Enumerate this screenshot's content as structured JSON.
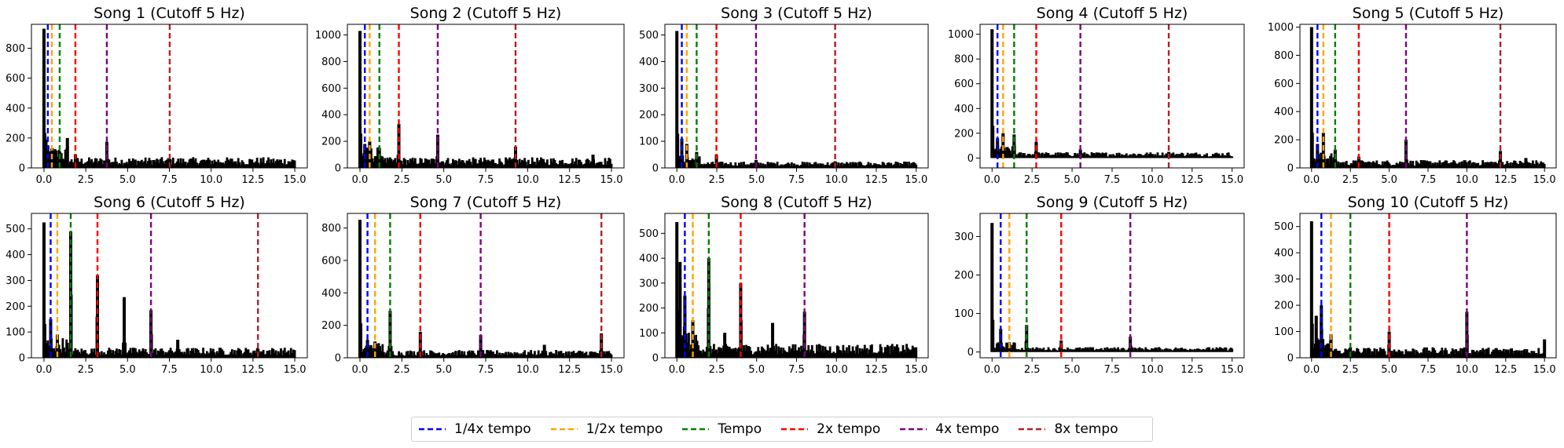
{
  "figure": {
    "cutoff_hz": 5
  },
  "legend": {
    "items": [
      {
        "label": "1/4x tempo",
        "color": "#0000ff"
      },
      {
        "label": "1/2x tempo",
        "color": "#ffa500"
      },
      {
        "label": "Tempo",
        "color": "#008000"
      },
      {
        "label": "2x tempo",
        "color": "#ff0000"
      },
      {
        "label": "4x tempo",
        "color": "#800080"
      },
      {
        "label": "8x tempo",
        "color": "#b22222"
      }
    ]
  },
  "chart_data": [
    {
      "type": "bar",
      "title": "Song 1 (Cutoff 5 Hz)",
      "xlim": [
        -0.75,
        15.75
      ],
      "ylim": [
        0,
        960
      ],
      "xticks": [
        0.0,
        2.5,
        5.0,
        7.5,
        10.0,
        12.5,
        15.0
      ],
      "yticks": [
        0,
        200,
        400,
        600,
        800
      ],
      "tempo_markers": [
        0.23,
        0.47,
        0.94,
        1.88,
        3.76,
        7.52
      ],
      "peaks": [
        [
          0.0,
          930
        ],
        [
          0.12,
          190
        ],
        [
          0.23,
          150
        ],
        [
          0.47,
          130
        ],
        [
          0.94,
          110
        ],
        [
          1.4,
          200
        ],
        [
          1.88,
          90
        ],
        [
          3.76,
          175
        ],
        [
          7.52,
          60
        ]
      ],
      "baseline": 45
    },
    {
      "type": "bar",
      "title": "Song 2 (Cutoff 5 Hz)",
      "xlim": [
        -0.75,
        15.75
      ],
      "ylim": [
        0,
        1080
      ],
      "xticks": [
        0.0,
        2.5,
        5.0,
        7.5,
        10.0,
        12.5,
        15.0
      ],
      "yticks": [
        0,
        200,
        400,
        600,
        800,
        1000
      ],
      "tempo_markers": [
        0.29,
        0.58,
        1.16,
        2.32,
        4.64,
        9.28
      ],
      "peaks": [
        [
          0.0,
          1030
        ],
        [
          0.29,
          180
        ],
        [
          0.58,
          200
        ],
        [
          1.16,
          150
        ],
        [
          2.32,
          330
        ],
        [
          4.64,
          250
        ],
        [
          9.28,
          160
        ],
        [
          13.9,
          100
        ]
      ],
      "baseline": 50
    },
    {
      "type": "bar",
      "title": "Song 3 (Cutoff 5 Hz)",
      "xlim": [
        -0.75,
        15.75
      ],
      "ylim": [
        0,
        540
      ],
      "xticks": [
        0.0,
        2.5,
        5.0,
        7.5,
        10.0,
        12.5,
        15.0
      ],
      "yticks": [
        0,
        100,
        200,
        300,
        400,
        500
      ],
      "tempo_markers": [
        0.31,
        0.62,
        1.24,
        2.48,
        4.96,
        9.92
      ],
      "peaks": [
        [
          0.0,
          515
        ],
        [
          0.31,
          110
        ],
        [
          0.62,
          90
        ],
        [
          1.24,
          60
        ],
        [
          2.48,
          50
        ],
        [
          4.96,
          30
        ],
        [
          9.92,
          25
        ]
      ],
      "baseline": 15
    },
    {
      "type": "bar",
      "title": "Song 4 (Cutoff 5 Hz)",
      "xlim": [
        -0.75,
        15.75
      ],
      "ylim": [
        -80,
        1080
      ],
      "xticks": [
        0.0,
        2.5,
        5.0,
        7.5,
        10.0,
        12.5,
        15.0
      ],
      "yticks": [
        0,
        200,
        400,
        600,
        800,
        1000
      ],
      "tempo_markers": [
        0.34,
        0.69,
        1.38,
        2.76,
        5.52,
        11.04
      ],
      "peaks": [
        [
          0.0,
          1040
        ],
        [
          0.34,
          160
        ],
        [
          0.69,
          200
        ],
        [
          1.38,
          190
        ],
        [
          2.76,
          130
        ],
        [
          5.52,
          70
        ],
        [
          11.04,
          50
        ]
      ],
      "baseline": 30
    },
    {
      "type": "bar",
      "title": "Song 5 (Cutoff 5 Hz)",
      "xlim": [
        -0.75,
        15.75
      ],
      "ylim": [
        0,
        1020
      ],
      "xticks": [
        0.0,
        2.5,
        5.0,
        7.5,
        10.0,
        12.5,
        15.0
      ],
      "yticks": [
        0,
        200,
        400,
        600,
        800,
        1000
      ],
      "tempo_markers": [
        0.38,
        0.76,
        1.52,
        3.04,
        6.08,
        12.16
      ],
      "peaks": [
        [
          0.0,
          1000
        ],
        [
          0.38,
          170
        ],
        [
          0.76,
          250
        ],
        [
          1.52,
          130
        ],
        [
          3.04,
          80
        ],
        [
          6.08,
          200
        ],
        [
          12.16,
          120
        ],
        [
          13.8,
          70
        ]
      ],
      "baseline": 35
    },
    {
      "type": "bar",
      "title": "Song 6 (Cutoff 5 Hz)",
      "xlim": [
        -0.75,
        15.75
      ],
      "ylim": [
        0,
        560
      ],
      "xticks": [
        0.0,
        2.5,
        5.0,
        7.5,
        10.0,
        12.5,
        15.0
      ],
      "yticks": [
        0,
        100,
        200,
        300,
        400,
        500
      ],
      "tempo_markers": [
        0.4,
        0.8,
        1.6,
        3.2,
        6.4,
        12.8
      ],
      "peaks": [
        [
          0.0,
          525
        ],
        [
          0.4,
          150
        ],
        [
          0.8,
          90
        ],
        [
          1.6,
          490
        ],
        [
          3.2,
          320
        ],
        [
          4.8,
          235
        ],
        [
          6.4,
          185
        ],
        [
          8.0,
          70
        ],
        [
          12.8,
          35
        ]
      ],
      "baseline": 25
    },
    {
      "type": "bar",
      "title": "Song 7 (Cutoff 5 Hz)",
      "xlim": [
        -0.75,
        15.75
      ],
      "ylim": [
        0,
        890
      ],
      "xticks": [
        0.0,
        2.5,
        5.0,
        7.5,
        10.0,
        12.5,
        15.0
      ],
      "yticks": [
        0,
        200,
        400,
        600,
        800
      ],
      "tempo_markers": [
        0.45,
        0.9,
        1.8,
        3.6,
        7.2,
        14.4
      ],
      "peaks": [
        [
          0.0,
          850
        ],
        [
          0.45,
          110
        ],
        [
          0.9,
          100
        ],
        [
          1.8,
          290
        ],
        [
          3.6,
          160
        ],
        [
          7.2,
          140
        ],
        [
          11.0,
          80
        ],
        [
          14.4,
          150
        ]
      ],
      "baseline": 30
    },
    {
      "type": "bar",
      "title": "Song 8 (Cutoff 5 Hz)",
      "xlim": [
        -0.75,
        15.75
      ],
      "ylim": [
        0,
        580
      ],
      "xticks": [
        0.0,
        2.5,
        5.0,
        7.5,
        10.0,
        12.5,
        15.0
      ],
      "yticks": [
        0,
        100,
        200,
        300,
        400,
        500
      ],
      "tempo_markers": [
        0.5,
        1.0,
        2.0,
        4.0,
        8.0
      ],
      "peaks": [
        [
          0.0,
          545
        ],
        [
          0.2,
          385
        ],
        [
          0.5,
          250
        ],
        [
          1.0,
          150
        ],
        [
          2.0,
          400
        ],
        [
          3.0,
          100
        ],
        [
          4.0,
          300
        ],
        [
          6.0,
          140
        ],
        [
          8.0,
          185
        ]
      ],
      "baseline": 35
    },
    {
      "type": "bar",
      "title": "Song 9 (Cutoff 5 Hz)",
      "xlim": [
        -0.75,
        15.75
      ],
      "ylim": [
        -15,
        360
      ],
      "xticks": [
        0.0,
        2.5,
        5.0,
        7.5,
        10.0,
        12.5,
        15.0
      ],
      "yticks": [
        0,
        100,
        200,
        300
      ],
      "tempo_markers": [
        0.54,
        1.08,
        2.16,
        4.32,
        8.64
      ],
      "peaks": [
        [
          0.0,
          335
        ],
        [
          0.54,
          60
        ],
        [
          1.08,
          25
        ],
        [
          2.16,
          70
        ],
        [
          4.32,
          30
        ],
        [
          8.64,
          40
        ]
      ],
      "baseline": 8
    },
    {
      "type": "bar",
      "title": "Song 10 (Cutoff 5 Hz)",
      "xlim": [
        -0.75,
        15.75
      ],
      "ylim": [
        0,
        550
      ],
      "xticks": [
        0.0,
        2.5,
        5.0,
        7.5,
        10.0,
        12.5,
        15.0
      ],
      "yticks": [
        0,
        100,
        200,
        300,
        400,
        500
      ],
      "tempo_markers": [
        0.63,
        1.25,
        2.5,
        5.0,
        10.0
      ],
      "peaks": [
        [
          0.0,
          520
        ],
        [
          0.3,
          160
        ],
        [
          0.63,
          200
        ],
        [
          1.25,
          90
        ],
        [
          2.5,
          40
        ],
        [
          5.0,
          100
        ],
        [
          10.0,
          175
        ],
        [
          15.0,
          70
        ]
      ],
      "baseline": 25
    }
  ]
}
